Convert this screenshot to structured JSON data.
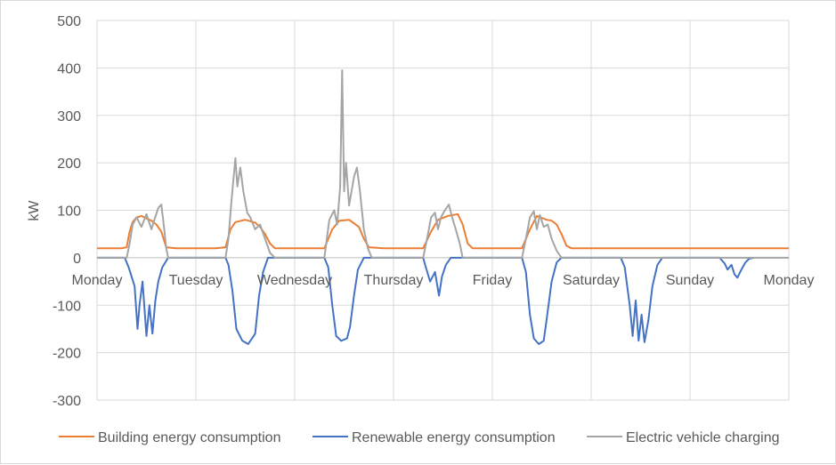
{
  "chart_data": {
    "type": "line",
    "title": "",
    "xlabel": "",
    "ylabel": "kW",
    "ylim": [
      -300,
      500
    ],
    "yticks": [
      -300,
      -200,
      -100,
      0,
      100,
      200,
      300,
      400,
      500
    ],
    "ytick_labels": [
      "-300",
      "-200",
      "-100",
      "0",
      "100",
      "200",
      "300",
      "400",
      "500"
    ],
    "xlim": [
      0,
      7
    ],
    "categories": [
      "Monday",
      "Tuesday",
      "Wednesday",
      "Thursday",
      "Friday",
      "Saturday",
      "Sunday",
      "Monday"
    ],
    "grid": true,
    "legend_position": "bottom",
    "series": [
      {
        "name": "Building energy consumption",
        "color": "#ED7D31",
        "points": [
          [
            0,
            20
          ],
          [
            0.25,
            20
          ],
          [
            0.3,
            22
          ],
          [
            0.33,
            55
          ],
          [
            0.36,
            75
          ],
          [
            0.4,
            85
          ],
          [
            0.45,
            88
          ],
          [
            0.5,
            83
          ],
          [
            0.55,
            78
          ],
          [
            0.6,
            70
          ],
          [
            0.65,
            55
          ],
          [
            0.68,
            35
          ],
          [
            0.7,
            22
          ],
          [
            0.8,
            20
          ],
          [
            1,
            20
          ],
          [
            1.2,
            20
          ],
          [
            1.3,
            22
          ],
          [
            1.35,
            60
          ],
          [
            1.4,
            75
          ],
          [
            1.5,
            80
          ],
          [
            1.6,
            74
          ],
          [
            1.65,
            65
          ],
          [
            1.7,
            50
          ],
          [
            1.75,
            30
          ],
          [
            1.8,
            20
          ],
          [
            2,
            20
          ],
          [
            2.3,
            20
          ],
          [
            2.38,
            60
          ],
          [
            2.45,
            78
          ],
          [
            2.55,
            80
          ],
          [
            2.65,
            65
          ],
          [
            2.7,
            40
          ],
          [
            2.75,
            22
          ],
          [
            2.9,
            20
          ],
          [
            3.3,
            20
          ],
          [
            3.38,
            55
          ],
          [
            3.45,
            80
          ],
          [
            3.55,
            88
          ],
          [
            3.65,
            92
          ],
          [
            3.7,
            70
          ],
          [
            3.75,
            30
          ],
          [
            3.8,
            20
          ],
          [
            4,
            20
          ],
          [
            4.3,
            20
          ],
          [
            4.38,
            60
          ],
          [
            4.45,
            88
          ],
          [
            4.55,
            80
          ],
          [
            4.6,
            78
          ],
          [
            4.65,
            70
          ],
          [
            4.7,
            50
          ],
          [
            4.75,
            25
          ],
          [
            4.8,
            20
          ],
          [
            5,
            20
          ],
          [
            6,
            20
          ],
          [
            7,
            20
          ]
        ]
      },
      {
        "name": "Renewable energy consumption",
        "color": "#4472C4",
        "points": [
          [
            0,
            0
          ],
          [
            0.28,
            0
          ],
          [
            0.32,
            -20
          ],
          [
            0.38,
            -60
          ],
          [
            0.41,
            -150
          ],
          [
            0.43,
            -100
          ],
          [
            0.46,
            -50
          ],
          [
            0.5,
            -165
          ],
          [
            0.53,
            -100
          ],
          [
            0.56,
            -160
          ],
          [
            0.59,
            -90
          ],
          [
            0.62,
            -50
          ],
          [
            0.66,
            -20
          ],
          [
            0.72,
            0
          ],
          [
            1.3,
            0
          ],
          [
            1.33,
            -15
          ],
          [
            1.37,
            -70
          ],
          [
            1.41,
            -150
          ],
          [
            1.47,
            -175
          ],
          [
            1.53,
            -182
          ],
          [
            1.6,
            -160
          ],
          [
            1.64,
            -80
          ],
          [
            1.68,
            -30
          ],
          [
            1.73,
            0
          ],
          [
            2.3,
            0
          ],
          [
            2.34,
            -20
          ],
          [
            2.38,
            -100
          ],
          [
            2.42,
            -165
          ],
          [
            2.47,
            -175
          ],
          [
            2.53,
            -170
          ],
          [
            2.56,
            -145
          ],
          [
            2.6,
            -80
          ],
          [
            2.64,
            -25
          ],
          [
            2.7,
            0
          ],
          [
            3.3,
            0
          ],
          [
            3.32,
            -15
          ],
          [
            3.37,
            -50
          ],
          [
            3.42,
            -30
          ],
          [
            3.46,
            -80
          ],
          [
            3.49,
            -40
          ],
          [
            3.53,
            -15
          ],
          [
            3.58,
            0
          ],
          [
            4.3,
            0
          ],
          [
            4.34,
            -30
          ],
          [
            4.38,
            -120
          ],
          [
            4.42,
            -170
          ],
          [
            4.47,
            -182
          ],
          [
            4.52,
            -175
          ],
          [
            4.55,
            -130
          ],
          [
            4.6,
            -50
          ],
          [
            4.65,
            -10
          ],
          [
            4.7,
            0
          ],
          [
            5.3,
            0
          ],
          [
            5.34,
            -20
          ],
          [
            5.39,
            -100
          ],
          [
            5.42,
            -165
          ],
          [
            5.45,
            -90
          ],
          [
            5.48,
            -175
          ],
          [
            5.51,
            -120
          ],
          [
            5.54,
            -178
          ],
          [
            5.58,
            -130
          ],
          [
            5.62,
            -60
          ],
          [
            5.67,
            -15
          ],
          [
            5.72,
            0
          ],
          [
            6.3,
            0
          ],
          [
            6.35,
            -12
          ],
          [
            6.38,
            -25
          ],
          [
            6.42,
            -15
          ],
          [
            6.45,
            -35
          ],
          [
            6.48,
            -42
          ],
          [
            6.52,
            -25
          ],
          [
            6.56,
            -10
          ],
          [
            6.6,
            -2
          ],
          [
            6.65,
            0
          ]
        ]
      },
      {
        "name": "Electric vehicle charging",
        "color": "#A5A5A5",
        "points": [
          [
            0,
            0
          ],
          [
            0.3,
            0
          ],
          [
            0.33,
            30
          ],
          [
            0.36,
            70
          ],
          [
            0.4,
            85
          ],
          [
            0.45,
            65
          ],
          [
            0.5,
            92
          ],
          [
            0.55,
            60
          ],
          [
            0.58,
            80
          ],
          [
            0.62,
            105
          ],
          [
            0.65,
            112
          ],
          [
            0.68,
            60
          ],
          [
            0.7,
            20
          ],
          [
            0.72,
            0
          ],
          [
            1.3,
            0
          ],
          [
            1.33,
            40
          ],
          [
            1.36,
            120
          ],
          [
            1.4,
            210
          ],
          [
            1.42,
            150
          ],
          [
            1.45,
            190
          ],
          [
            1.48,
            140
          ],
          [
            1.52,
            95
          ],
          [
            1.55,
            85
          ],
          [
            1.6,
            60
          ],
          [
            1.65,
            70
          ],
          [
            1.7,
            40
          ],
          [
            1.75,
            10
          ],
          [
            1.8,
            0
          ],
          [
            2.3,
            0
          ],
          [
            2.35,
            80
          ],
          [
            2.4,
            100
          ],
          [
            2.43,
            70
          ],
          [
            2.46,
            150
          ],
          [
            2.48,
            395
          ],
          [
            2.5,
            140
          ],
          [
            2.52,
            200
          ],
          [
            2.55,
            110
          ],
          [
            2.6,
            170
          ],
          [
            2.63,
            190
          ],
          [
            2.66,
            140
          ],
          [
            2.7,
            60
          ],
          [
            2.74,
            20
          ],
          [
            2.78,
            0
          ],
          [
            3.3,
            0
          ],
          [
            3.34,
            40
          ],
          [
            3.38,
            85
          ],
          [
            3.42,
            95
          ],
          [
            3.45,
            60
          ],
          [
            3.48,
            85
          ],
          [
            3.52,
            100
          ],
          [
            3.56,
            112
          ],
          [
            3.6,
            80
          ],
          [
            3.63,
            60
          ],
          [
            3.67,
            30
          ],
          [
            3.7,
            0
          ],
          [
            4.3,
            0
          ],
          [
            4.34,
            40
          ],
          [
            4.38,
            85
          ],
          [
            4.42,
            98
          ],
          [
            4.45,
            60
          ],
          [
            4.48,
            90
          ],
          [
            4.52,
            65
          ],
          [
            4.56,
            70
          ],
          [
            4.6,
            40
          ],
          [
            4.65,
            15
          ],
          [
            4.7,
            0
          ],
          [
            7,
            0
          ]
        ]
      }
    ]
  }
}
